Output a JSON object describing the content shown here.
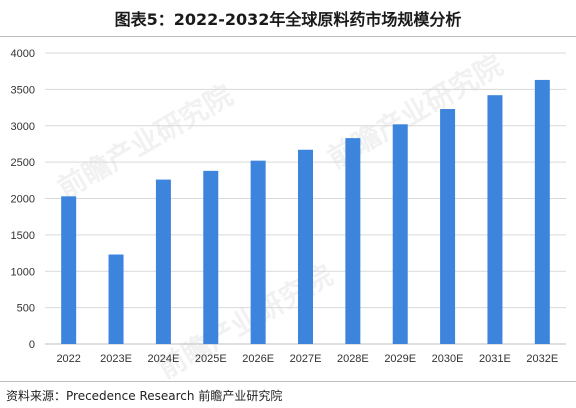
{
  "header": {
    "title": "图表5：2022-2032年全球原料药市场规模分析"
  },
  "footer": {
    "source": "资料来源：Precedence Research 前瞻产业研究院"
  },
  "watermark": {
    "text": "前瞻产业研究院"
  },
  "chart_data": {
    "type": "bar",
    "title": "",
    "xlabel": "",
    "ylabel": "",
    "ylim": [
      0,
      4000
    ],
    "yticks": [
      0,
      500,
      1000,
      1500,
      2000,
      2500,
      3000,
      3500,
      4000
    ],
    "grid": true,
    "bar_color": "#3c84dc",
    "categories": [
      "2022",
      "2023E",
      "2024E",
      "2025E",
      "2026E",
      "2027E",
      "2028E",
      "2029E",
      "2030E",
      "2031E",
      "2032E"
    ],
    "values": [
      2030,
      1230,
      2260,
      2380,
      2520,
      2670,
      2830,
      3020,
      3230,
      3420,
      3630
    ]
  }
}
